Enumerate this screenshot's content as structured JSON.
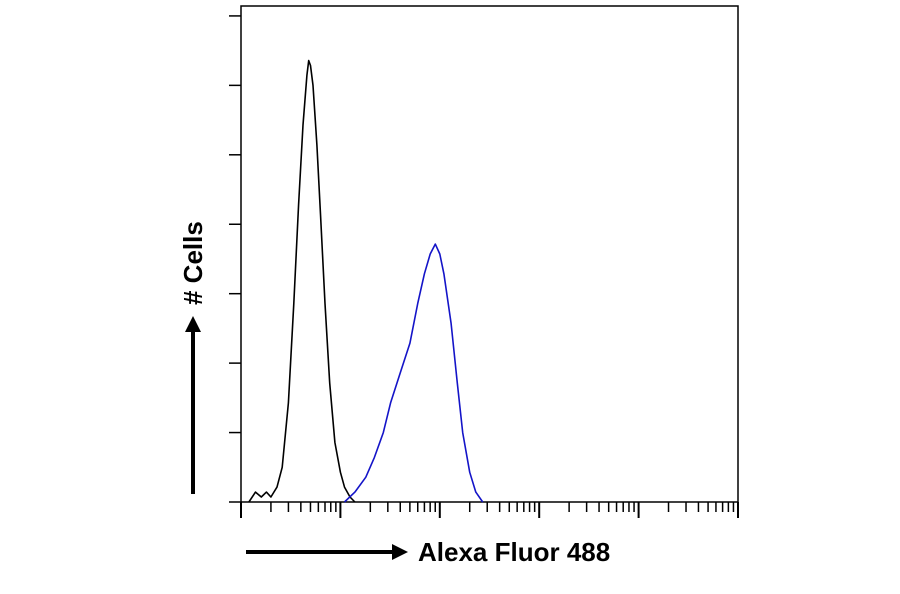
{
  "chart_data": {
    "type": "line",
    "title": "",
    "xlabel": "Alexa Fluor 488",
    "ylabel": "# Cells",
    "x_scale": "log",
    "xlim": [
      0.1,
      10000
    ],
    "ylim": [
      0,
      1.0
    ],
    "y_ticks": [
      0,
      0.14,
      0.28,
      0.42,
      0.56,
      0.7,
      0.84,
      0.98
    ],
    "grid": false,
    "legend": "none",
    "series": [
      {
        "color": "#000000",
        "points": [
          [
            0.12,
            0.0
          ],
          [
            0.14,
            0.02
          ],
          [
            0.16,
            0.01
          ],
          [
            0.18,
            0.02
          ],
          [
            0.2,
            0.01
          ],
          [
            0.23,
            0.03
          ],
          [
            0.26,
            0.07
          ],
          [
            0.3,
            0.2
          ],
          [
            0.34,
            0.4
          ],
          [
            0.38,
            0.6
          ],
          [
            0.42,
            0.76
          ],
          [
            0.46,
            0.86
          ],
          [
            0.48,
            0.89
          ],
          [
            0.5,
            0.88
          ],
          [
            0.53,
            0.84
          ],
          [
            0.58,
            0.72
          ],
          [
            0.63,
            0.58
          ],
          [
            0.7,
            0.4
          ],
          [
            0.78,
            0.24
          ],
          [
            0.88,
            0.12
          ],
          [
            1.0,
            0.06
          ],
          [
            1.1,
            0.03
          ],
          [
            1.25,
            0.01
          ],
          [
            1.4,
            0.0
          ]
        ]
      },
      {
        "color": "#1414c8",
        "points": [
          [
            1.1,
            0.0
          ],
          [
            1.4,
            0.02
          ],
          [
            1.8,
            0.05
          ],
          [
            2.2,
            0.09
          ],
          [
            2.7,
            0.14
          ],
          [
            3.2,
            0.2
          ],
          [
            4.0,
            0.26
          ],
          [
            5.0,
            0.32
          ],
          [
            6.0,
            0.4
          ],
          [
            7.0,
            0.46
          ],
          [
            8.0,
            0.5
          ],
          [
            9.0,
            0.52
          ],
          [
            10.0,
            0.5
          ],
          [
            11.0,
            0.46
          ],
          [
            13.0,
            0.36
          ],
          [
            15.0,
            0.24
          ],
          [
            17.0,
            0.14
          ],
          [
            20.0,
            0.06
          ],
          [
            23.0,
            0.02
          ],
          [
            27.0,
            0.0
          ]
        ]
      }
    ]
  }
}
